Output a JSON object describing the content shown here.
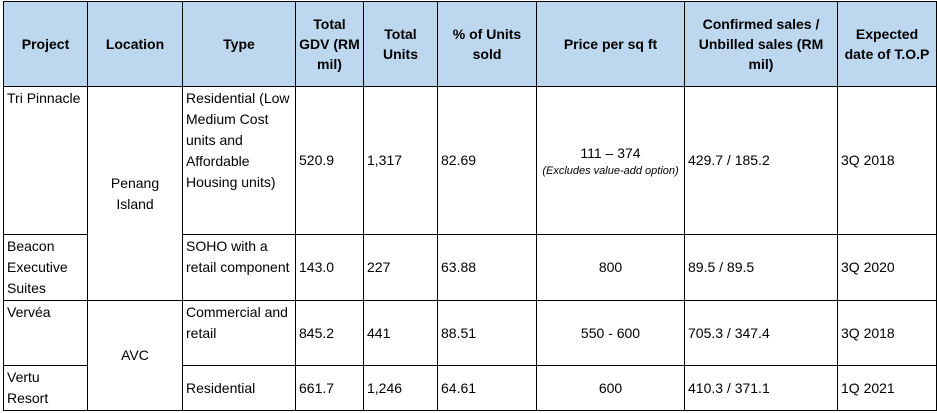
{
  "table": {
    "headers": {
      "project": "Project",
      "location": "Location",
      "type": "Type",
      "gdv": "Total GDV (RM mil)",
      "units": "Total Units",
      "pct_sold": "% of Units sold",
      "price": "Price per sq ft",
      "sales": "Confirmed sales / Unbilled sales (RM mil)",
      "top": "Expected date of T.O.P"
    },
    "locations": [
      "Penang Island",
      "AVC"
    ],
    "rows": [
      {
        "project": "Tri Pinnacle",
        "type": "Residential (Low Medium Cost units and Affordable Housing units)",
        "gdv": "520.9",
        "units": "1,317",
        "pct_sold": "82.69",
        "price": "111 – 374",
        "price_note": "(Excludes value-add option)",
        "sales": "429.7 / 185.2",
        "top": "3Q 2018"
      },
      {
        "project": "Beacon Executive Suites",
        "type": "SOHO with a retail component",
        "gdv": "143.0",
        "units": "227",
        "pct_sold": "63.88",
        "price": "800",
        "sales": "89.5 / 89.5",
        "top": "3Q 2020"
      },
      {
        "project": "Vervéa",
        "type": "Commercial and retail",
        "gdv": "845.2",
        "units": "441",
        "pct_sold": "88.51",
        "price": "550 - 600",
        "sales": "705.3 / 347.4",
        "top": "3Q 2018"
      },
      {
        "project": "Vertu Resort",
        "type": "Residential",
        "gdv": "661.7",
        "units": "1,246",
        "pct_sold": "64.61",
        "price": "600",
        "sales": "410.3 / 371.1",
        "top": "1Q 2021"
      }
    ]
  }
}
